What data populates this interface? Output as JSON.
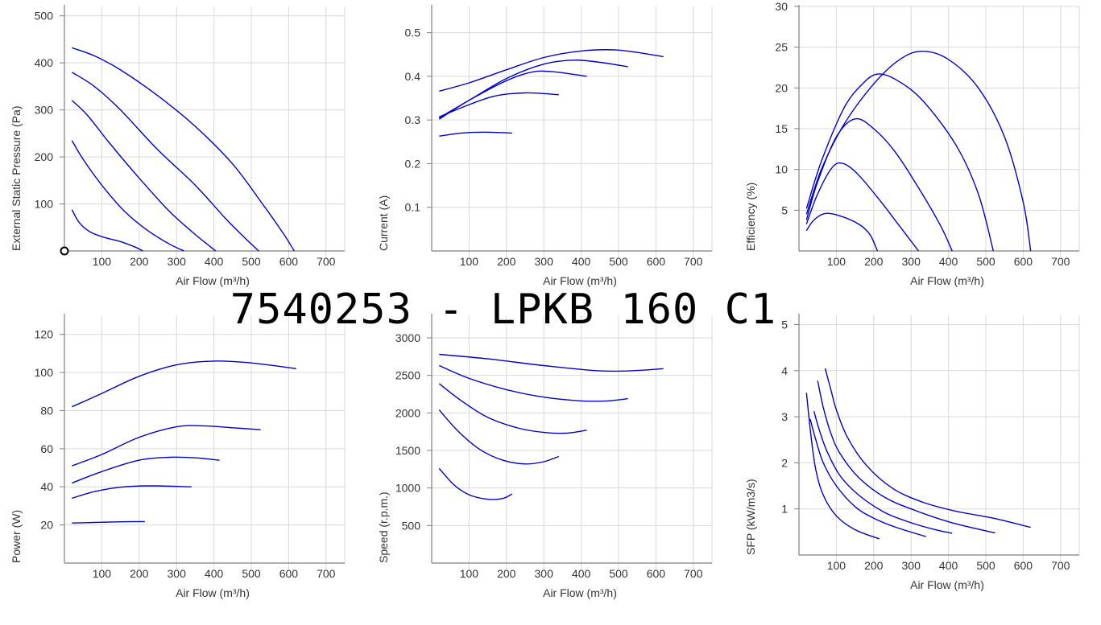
{
  "title": "7540253 -  LPKB 160 C1",
  "colors": {
    "curve": "#0000cc",
    "grid": "#d9d9d9",
    "axis": "#7f7f7f",
    "text": "#333333"
  },
  "chart_data": [
    {
      "type": "line",
      "xlabel": "Air Flow (m³/h)",
      "ylabel": "External Static Pressure (Pa)",
      "xlim": [
        0,
        750
      ],
      "ylim": [
        0,
        520
      ],
      "xticks": [
        "100",
        "200",
        "300",
        "400",
        "500",
        "600",
        "700"
      ],
      "yticks": [
        "100",
        "200",
        "300",
        "400",
        "500"
      ],
      "origin_marker": true,
      "series": [
        {
          "points": [
            [
              20,
              432
            ],
            [
              80,
              415
            ],
            [
              150,
              385
            ],
            [
              250,
              330
            ],
            [
              350,
              265
            ],
            [
              450,
              185
            ],
            [
              530,
              100
            ],
            [
              585,
              38
            ],
            [
              615,
              0
            ]
          ]
        },
        {
          "points": [
            [
              20,
              380
            ],
            [
              80,
              350
            ],
            [
              150,
              300
            ],
            [
              250,
              215
            ],
            [
              350,
              140
            ],
            [
              430,
              70
            ],
            [
              480,
              30
            ],
            [
              520,
              0
            ]
          ]
        },
        {
          "points": [
            [
              20,
              320
            ],
            [
              60,
              290
            ],
            [
              120,
              230
            ],
            [
              200,
              155
            ],
            [
              280,
              85
            ],
            [
              350,
              35
            ],
            [
              405,
              0
            ]
          ]
        },
        {
          "points": [
            [
              20,
              235
            ],
            [
              50,
              195
            ],
            [
              100,
              140
            ],
            [
              160,
              85
            ],
            [
              220,
              45
            ],
            [
              280,
              15
            ],
            [
              320,
              0
            ]
          ]
        },
        {
          "points": [
            [
              20,
              88
            ],
            [
              40,
              60
            ],
            [
              70,
              40
            ],
            [
              110,
              28
            ],
            [
              150,
              20
            ],
            [
              190,
              8
            ],
            [
              210,
              0
            ]
          ]
        }
      ]
    },
    {
      "type": "line",
      "xlabel": "Air Flow (m³/h)",
      "ylabel": "Current (A)",
      "xlim": [
        0,
        750
      ],
      "ylim": [
        0,
        0.56
      ],
      "xticks": [
        "100",
        "200",
        "300",
        "400",
        "500",
        "600",
        "700"
      ],
      "yticks": [
        "0.1",
        "0.2",
        "0.3",
        "0.4",
        "0.5"
      ],
      "series": [
        {
          "points": [
            [
              20,
              0.366
            ],
            [
              100,
              0.385
            ],
            [
              200,
              0.415
            ],
            [
              300,
              0.443
            ],
            [
              400,
              0.458
            ],
            [
              500,
              0.46
            ],
            [
              620,
              0.445
            ]
          ]
        },
        {
          "points": [
            [
              20,
              0.305
            ],
            [
              100,
              0.345
            ],
            [
              200,
              0.395
            ],
            [
              300,
              0.428
            ],
            [
              380,
              0.437
            ],
            [
              450,
              0.432
            ],
            [
              525,
              0.422
            ]
          ]
        },
        {
          "points": [
            [
              20,
              0.302
            ],
            [
              100,
              0.345
            ],
            [
              200,
              0.39
            ],
            [
              270,
              0.41
            ],
            [
              330,
              0.41
            ],
            [
              415,
              0.4
            ]
          ]
        },
        {
          "points": [
            [
              20,
              0.307
            ],
            [
              100,
              0.335
            ],
            [
              170,
              0.355
            ],
            [
              250,
              0.362
            ],
            [
              340,
              0.358
            ]
          ]
        },
        {
          "points": [
            [
              20,
              0.263
            ],
            [
              80,
              0.27
            ],
            [
              140,
              0.272
            ],
            [
              215,
              0.27
            ]
          ]
        }
      ]
    },
    {
      "type": "line",
      "xlabel": "Air Flow (m³/h)",
      "ylabel": "Efficiency (%)",
      "xlim": [
        0,
        750
      ],
      "ylim": [
        0,
        30
      ],
      "xticks": [
        "100",
        "200",
        "300",
        "400",
        "500",
        "600",
        "700"
      ],
      "yticks": [
        "5",
        "10",
        "15",
        "20",
        "25",
        "30"
      ],
      "series": [
        {
          "points": [
            [
              20,
              4.5
            ],
            [
              60,
              10
            ],
            [
              120,
              15.5
            ],
            [
              200,
              20.5
            ],
            [
              270,
              23.5
            ],
            [
              330,
              24.5
            ],
            [
              400,
              23.5
            ],
            [
              480,
              20
            ],
            [
              550,
              14
            ],
            [
              600,
              6
            ],
            [
              620,
              0
            ]
          ]
        },
        {
          "points": [
            [
              20,
              5.2
            ],
            [
              60,
              11
            ],
            [
              120,
              17.5
            ],
            [
              170,
              20.5
            ],
            [
              210,
              21.7
            ],
            [
              260,
              21
            ],
            [
              330,
              18.5
            ],
            [
              420,
              13
            ],
            [
              480,
              7
            ],
            [
              520,
              0
            ]
          ]
        },
        {
          "points": [
            [
              20,
              3.8
            ],
            [
              50,
              8.5
            ],
            [
              100,
              14
            ],
            [
              150,
              16.2
            ],
            [
              200,
              15
            ],
            [
              260,
              12
            ],
            [
              330,
              7
            ],
            [
              380,
              3
            ],
            [
              410,
              0
            ]
          ]
        },
        {
          "points": [
            [
              20,
              3.3
            ],
            [
              50,
              7
            ],
            [
              90,
              10.3
            ],
            [
              120,
              10.7
            ],
            [
              160,
              9.3
            ],
            [
              220,
              6
            ],
            [
              270,
              3
            ],
            [
              320,
              0
            ]
          ]
        },
        {
          "points": [
            [
              20,
              2.5
            ],
            [
              40,
              3.8
            ],
            [
              70,
              4.6
            ],
            [
              110,
              4.3
            ],
            [
              160,
              3.3
            ],
            [
              190,
              2
            ],
            [
              210,
              0
            ]
          ]
        }
      ]
    },
    {
      "type": "line",
      "xlabel": "Air Flow (m³/h)",
      "ylabel": "Power (W)",
      "xlim": [
        0,
        750
      ],
      "ylim": [
        0,
        130
      ],
      "xticks": [
        "100",
        "200",
        "300",
        "400",
        "500",
        "600",
        "700"
      ],
      "yticks": [
        "20",
        "40",
        "60",
        "80",
        "100",
        "120"
      ],
      "series": [
        {
          "points": [
            [
              20,
              82
            ],
            [
              100,
              89
            ],
            [
              200,
              98
            ],
            [
              300,
              104
            ],
            [
              400,
              106
            ],
            [
              500,
              105
            ],
            [
              620,
              102
            ]
          ]
        },
        {
          "points": [
            [
              20,
              51
            ],
            [
              100,
              57
            ],
            [
              200,
              66
            ],
            [
              300,
              71.5
            ],
            [
              370,
              72
            ],
            [
              450,
              71
            ],
            [
              525,
              70
            ]
          ]
        },
        {
          "points": [
            [
              20,
              42
            ],
            [
              100,
              48
            ],
            [
              200,
              54
            ],
            [
              280,
              55.5
            ],
            [
              350,
              55.2
            ],
            [
              415,
              54
            ]
          ]
        },
        {
          "points": [
            [
              20,
              34
            ],
            [
              80,
              37.5
            ],
            [
              150,
              39.8
            ],
            [
              230,
              40.5
            ],
            [
              340,
              40
            ]
          ]
        },
        {
          "points": [
            [
              20,
              21
            ],
            [
              80,
              21.3
            ],
            [
              140,
              21.6
            ],
            [
              215,
              21.8
            ]
          ]
        }
      ]
    },
    {
      "type": "line",
      "xlabel": "Air Flow (m³/h)",
      "ylabel": "Speed (r.p.m.)",
      "xlim": [
        0,
        750
      ],
      "ylim": [
        0,
        3300
      ],
      "xticks": [
        "100",
        "200",
        "300",
        "400",
        "500",
        "600",
        "700"
      ],
      "yticks": [
        "500",
        "1000",
        "1500",
        "2000",
        "2500",
        "3000"
      ],
      "series": [
        {
          "points": [
            [
              20,
              2780
            ],
            [
              150,
              2720
            ],
            [
              300,
              2630
            ],
            [
              450,
              2560
            ],
            [
              550,
              2565
            ],
            [
              620,
              2590
            ]
          ]
        },
        {
          "points": [
            [
              20,
              2630
            ],
            [
              100,
              2460
            ],
            [
              200,
              2310
            ],
            [
              300,
              2210
            ],
            [
              400,
              2160
            ],
            [
              470,
              2160
            ],
            [
              525,
              2190
            ]
          ]
        },
        {
          "points": [
            [
              20,
              2390
            ],
            [
              80,
              2160
            ],
            [
              150,
              1940
            ],
            [
              230,
              1800
            ],
            [
              300,
              1740
            ],
            [
              360,
              1730
            ],
            [
              415,
              1770
            ]
          ]
        },
        {
          "points": [
            [
              20,
              2040
            ],
            [
              70,
              1760
            ],
            [
              130,
              1510
            ],
            [
              190,
              1370
            ],
            [
              250,
              1320
            ],
            [
              300,
              1350
            ],
            [
              340,
              1420
            ]
          ]
        },
        {
          "points": [
            [
              20,
              1260
            ],
            [
              60,
              1040
            ],
            [
              100,
              910
            ],
            [
              150,
              850
            ],
            [
              190,
              860
            ],
            [
              215,
              920
            ]
          ]
        }
      ]
    },
    {
      "type": "line",
      "xlabel": "Air Flow (m³/h)",
      "ylabel": "SFP (kW/m3/s)",
      "xlim": [
        0,
        750
      ],
      "ylim": [
        0,
        5.2
      ],
      "xticks": [
        "100",
        "200",
        "300",
        "400",
        "500",
        "600",
        "700"
      ],
      "yticks": [
        "1",
        "2",
        "3",
        "4",
        "5"
      ],
      "series": [
        {
          "points": [
            [
              70,
              4.05
            ],
            [
              85,
              3.6
            ],
            [
              100,
              3.15
            ],
            [
              130,
              2.55
            ],
            [
              180,
              1.95
            ],
            [
              250,
              1.45
            ],
            [
              330,
              1.15
            ],
            [
              420,
              0.95
            ],
            [
              520,
              0.8
            ],
            [
              620,
              0.6
            ]
          ]
        },
        {
          "points": [
            [
              50,
              3.78
            ],
            [
              65,
              3.2
            ],
            [
              85,
              2.65
            ],
            [
              110,
              2.2
            ],
            [
              160,
              1.68
            ],
            [
              230,
              1.25
            ],
            [
              310,
              0.97
            ],
            [
              410,
              0.7
            ],
            [
              525,
              0.48
            ]
          ]
        },
        {
          "points": [
            [
              40,
              3.12
            ],
            [
              55,
              2.7
            ],
            [
              75,
              2.25
            ],
            [
              110,
              1.72
            ],
            [
              160,
              1.3
            ],
            [
              230,
              0.92
            ],
            [
              300,
              0.7
            ],
            [
              360,
              0.56
            ],
            [
              410,
              0.47
            ]
          ]
        },
        {
          "points": [
            [
              30,
              2.95
            ],
            [
              45,
              2.5
            ],
            [
              65,
              2.0
            ],
            [
              100,
              1.5
            ],
            [
              150,
              1.05
            ],
            [
              200,
              0.8
            ],
            [
              260,
              0.6
            ],
            [
              340,
              0.4
            ]
          ]
        },
        {
          "points": [
            [
              20,
              3.52
            ],
            [
              32,
              2.6
            ],
            [
              45,
              1.85
            ],
            [
              65,
              1.3
            ],
            [
              100,
              0.85
            ],
            [
              150,
              0.55
            ],
            [
              215,
              0.35
            ]
          ]
        }
      ]
    }
  ]
}
